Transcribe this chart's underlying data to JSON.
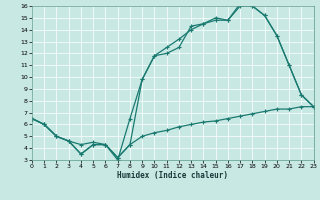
{
  "xlabel": "Humidex (Indice chaleur)",
  "bg_color": "#c8e8e4",
  "line_color": "#1a7a70",
  "xlim": [
    0,
    23
  ],
  "ylim": [
    3,
    16
  ],
  "xticks": [
    0,
    1,
    2,
    3,
    4,
    5,
    6,
    7,
    8,
    9,
    10,
    11,
    12,
    13,
    14,
    15,
    16,
    17,
    18,
    19,
    20,
    21,
    22,
    23
  ],
  "yticks": [
    3,
    4,
    5,
    6,
    7,
    8,
    9,
    10,
    11,
    12,
    13,
    14,
    15,
    16
  ],
  "curve_flat_x": [
    0,
    1,
    2,
    3,
    4,
    5,
    6,
    7,
    8,
    9,
    10,
    11,
    12,
    13,
    14,
    15,
    16,
    17,
    18,
    19,
    20,
    21,
    22,
    23
  ],
  "curve_flat_y": [
    6.5,
    6.0,
    5.0,
    4.6,
    4.3,
    4.5,
    4.3,
    3.2,
    4.3,
    5.0,
    5.3,
    5.5,
    5.8,
    6.0,
    6.2,
    6.3,
    6.5,
    6.7,
    6.9,
    7.1,
    7.3,
    7.3,
    7.5,
    7.5
  ],
  "curve_mid_x": [
    0,
    1,
    2,
    3,
    4,
    5,
    6,
    7,
    8,
    9,
    10,
    11,
    12,
    13,
    14,
    15,
    16,
    17,
    18,
    19,
    20,
    21,
    22,
    23
  ],
  "curve_mid_y": [
    6.5,
    6.0,
    5.0,
    4.6,
    3.5,
    4.3,
    4.3,
    3.2,
    4.3,
    9.8,
    11.8,
    12.5,
    13.2,
    14.0,
    14.5,
    14.8,
    14.8,
    16.0,
    16.0,
    15.2,
    13.5,
    11.0,
    8.5,
    7.5
  ],
  "curve_top_x": [
    0,
    1,
    2,
    3,
    4,
    5,
    6,
    7,
    8,
    9,
    10,
    11,
    12,
    13,
    14,
    15,
    16,
    17,
    18,
    19,
    20,
    21,
    22,
    23
  ],
  "curve_top_y": [
    6.5,
    6.0,
    5.0,
    4.6,
    3.5,
    4.3,
    4.3,
    3.0,
    6.5,
    9.8,
    11.8,
    12.0,
    12.5,
    14.3,
    14.5,
    15.0,
    14.8,
    16.2,
    16.0,
    15.2,
    13.5,
    11.0,
    8.5,
    7.5
  ]
}
